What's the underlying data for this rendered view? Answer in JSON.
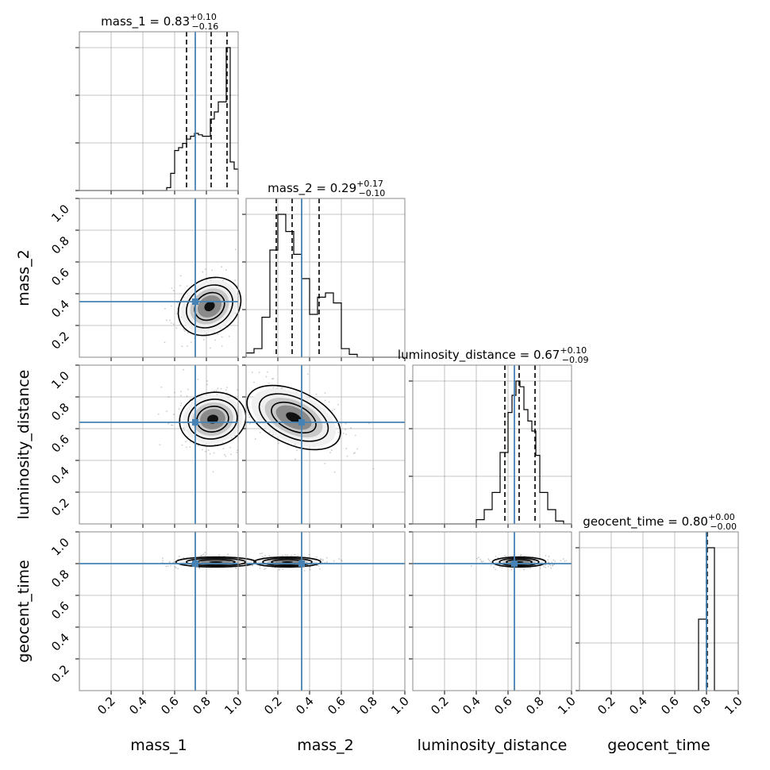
{
  "chart_data": {
    "type": "corner",
    "parameters": [
      "mass_1",
      "mass_2",
      "luminosity_distance",
      "geocent_time"
    ],
    "axis_labels": [
      "mass_1",
      "mass_2",
      "luminosity_distance",
      "geocent_time"
    ],
    "ticks": [
      0.2,
      0.4,
      0.6,
      0.8,
      1.0
    ],
    "tick_labels": [
      "0.2",
      "0.4",
      "0.6",
      "0.8",
      "1.0"
    ],
    "range": [
      0,
      1
    ],
    "grid": true,
    "truth_color": "#4682b4",
    "truths": [
      0.73,
      0.35,
      0.64,
      0.8
    ],
    "titles": [
      {
        "text": "mass_1 = 0.83",
        "plus": "+0.10",
        "minus": "−0.16"
      },
      {
        "text": "mass_2 = 0.29",
        "plus": "+0.17",
        "minus": "−0.10"
      },
      {
        "text": "luminosity_distance = 0.67",
        "plus": "+0.10",
        "minus": "−0.09"
      },
      {
        "text": "geocent_time = 0.80",
        "plus": "+0.00",
        "minus": "−0.00"
      }
    ],
    "quantiles": [
      [
        0.675,
        0.83,
        0.93
      ],
      [
        0.19,
        0.29,
        0.46
      ],
      [
        0.58,
        0.67,
        0.77
      ],
      [
        0.799,
        0.802,
        0.805
      ]
    ],
    "histograms": [
      {
        "bins": [
          0.55,
          0.575,
          0.6,
          0.625,
          0.65,
          0.675,
          0.7,
          0.725,
          0.75,
          0.775,
          0.8,
          0.825,
          0.85,
          0.875,
          0.9,
          0.925,
          0.95,
          0.975,
          1.0
        ],
        "counts": [
          0.02,
          0.12,
          0.28,
          0.3,
          0.33,
          0.36,
          0.38,
          0.4,
          0.39,
          0.38,
          0.38,
          0.5,
          0.55,
          0.62,
          0.62,
          1.0,
          0.2,
          0.15
        ]
      },
      {
        "bins": [
          0.0,
          0.05,
          0.1,
          0.15,
          0.2,
          0.25,
          0.3,
          0.35,
          0.4,
          0.45,
          0.5,
          0.55,
          0.6,
          0.65,
          0.7
        ],
        "counts": [
          0.03,
          0.06,
          0.28,
          0.75,
          1.0,
          0.88,
          0.72,
          0.55,
          0.3,
          0.42,
          0.45,
          0.38,
          0.06,
          0.02
        ]
      },
      {
        "bins": [
          0.4,
          0.45,
          0.5,
          0.55,
          0.6,
          0.625,
          0.65,
          0.675,
          0.7,
          0.725,
          0.75,
          0.775,
          0.8,
          0.85,
          0.9,
          0.95,
          1.0
        ],
        "counts": [
          0.03,
          0.1,
          0.22,
          0.5,
          0.78,
          0.9,
          1.0,
          0.96,
          0.8,
          0.72,
          0.65,
          0.48,
          0.22,
          0.1,
          0.02,
          0.0
        ]
      },
      {
        "bins": [
          0.75,
          0.8,
          0.85
        ],
        "counts": [
          0.5,
          1.0
        ]
      }
    ],
    "contours2d": [
      {
        "row": 1,
        "col": 0,
        "center": [
          0.82,
          0.32
        ],
        "spread": [
          0.1,
          0.08
        ],
        "angle": -35
      },
      {
        "row": 2,
        "col": 0,
        "center": [
          0.84,
          0.66
        ],
        "spread": [
          0.1,
          0.08
        ],
        "angle": -10
      },
      {
        "row": 2,
        "col": 1,
        "center": [
          0.3,
          0.67
        ],
        "spread": [
          0.15,
          0.08
        ],
        "angle": 25
      },
      {
        "row": 3,
        "col": 0,
        "center": [
          0.86,
          0.81
        ],
        "spread": [
          0.12,
          0.015
        ],
        "angle": 0
      },
      {
        "row": 3,
        "col": 1,
        "center": [
          0.26,
          0.81
        ],
        "spread": [
          0.1,
          0.015
        ],
        "angle": 0
      },
      {
        "row": 3,
        "col": 2,
        "center": [
          0.67,
          0.81
        ],
        "spread": [
          0.08,
          0.015
        ],
        "angle": 0
      }
    ]
  }
}
